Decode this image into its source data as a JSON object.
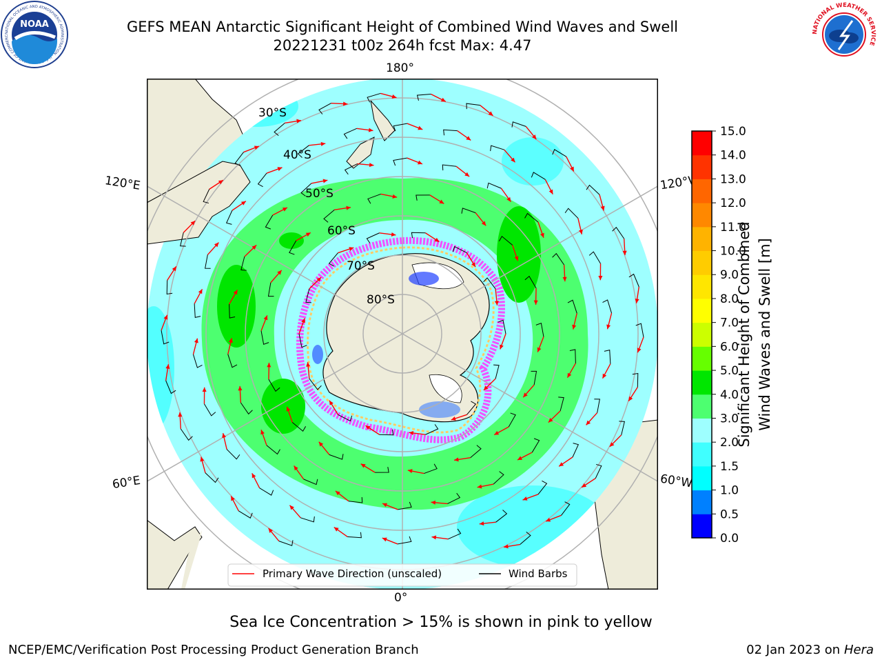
{
  "header": {
    "title_line1": "GEFS MEAN Antarctic Significant Height of Combined Wind Waves and Swell",
    "title_line2": "20221231 t00z 264h fcst   Max: 4.47",
    "left_logo_text": "NOAA",
    "left_logo_ring": "NATIONAL OCEANIC AND ATMOSPHERIC ADMINISTRATION · U.S. DEPARTMENT OF COMMERCE",
    "right_logo_ring": "NATIONAL WEATHER SERVICE"
  },
  "map": {
    "longitude_labels": {
      "top": "180°",
      "bottom": "0°",
      "upper_left": "120°E",
      "upper_right": "120°W",
      "lower_left": "60°E",
      "lower_right": "60°W"
    },
    "latitude_labels": [
      "30°S",
      "40°S",
      "50°S",
      "60°S",
      "70°S",
      "80°S"
    ],
    "legend": {
      "wave_direction": "Primary Wave Direction (unscaled)",
      "wind_barbs": "Wind Barbs"
    }
  },
  "colorbar": {
    "label_line1": "Significant Height of Combined",
    "label_line2": "Wind Waves and Swell [m]",
    "ticks": [
      "0.0",
      "0.5",
      "1.0",
      "1.5",
      "2.0",
      "3.0",
      "4.0",
      "5.0",
      "6.0",
      "7.0",
      "8.0",
      "9.0",
      "10.0",
      "11.0",
      "12.0",
      "13.0",
      "14.0",
      "15.0"
    ],
    "colors": [
      "#0000ff",
      "#0080ff",
      "#00ffff",
      "#40ffff",
      "#9effff",
      "#4dff70",
      "#00e600",
      "#66ff00",
      "#ccff00",
      "#ffff00",
      "#ffe600",
      "#ffcc00",
      "#ffb300",
      "#ff8800",
      "#ff6600",
      "#ff3300",
      "#ff0000"
    ]
  },
  "colors": {
    "land": "#eeecda",
    "ocean_base": "#9effff",
    "wave_arrow": "#ff0000",
    "wind_barb": "#000000",
    "grid": "#b0b0b0"
  },
  "footer": {
    "sea_ice_note": "Sea Ice Concentration > 15% is shown in pink to yellow",
    "producer": "NCEP/EMC/Verification Post Processing Product Generation Branch",
    "date": "02 Jan 2023 on ",
    "host": "Hera"
  }
}
